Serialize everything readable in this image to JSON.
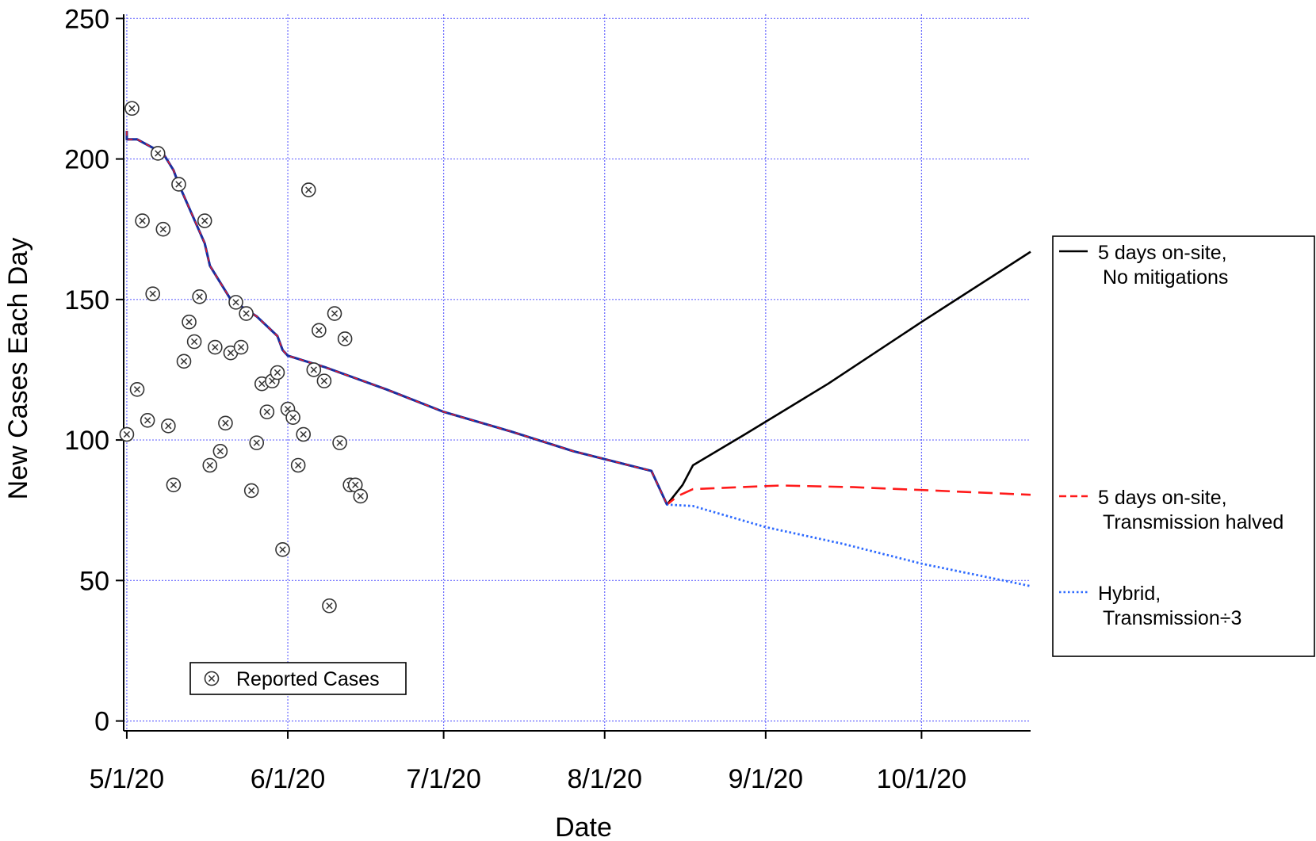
{
  "chart_data": {
    "type": "line",
    "xlabel": "Date",
    "ylabel": "New Cases Each Day",
    "x_ticks": [
      "5/1/20",
      "6/1/20",
      "7/1/20",
      "8/1/20",
      "9/1/20",
      "10/1/20"
    ],
    "xlim": [
      "5/1/20",
      "10/22/20"
    ],
    "ylim": [
      0,
      250
    ],
    "y_ticks": [
      0,
      50,
      100,
      150,
      200,
      250
    ],
    "grid": true,
    "colors": {
      "grid": "#6b6bff",
      "no_mitigation": "#000000",
      "halved": "#ff1a1a",
      "hybrid": "#2f6bff",
      "history": "#1a2fa0"
    },
    "series": [
      {
        "name": "5 days on-site, No mitigations",
        "legend_lines": [
          "5 days on-site,",
          "No mitigations"
        ],
        "style": "solid",
        "x": [
          "5/1/20",
          "5/1/20",
          "5/3/20",
          "5/8/20",
          "5/10/20",
          "5/11/20",
          "5/16/20",
          "5/17/20",
          "5/21/20",
          "5/26/20",
          "5/30/20",
          "5/31/20",
          "6/1/20",
          "6/8/20",
          "6/20/20",
          "7/1/20",
          "7/14/20",
          "7/26/20",
          "8/10/20",
          "8/13/20",
          "8/16/20",
          "8/18/20",
          "8/28/20",
          "9/13/20",
          "10/1/20",
          "10/22/20"
        ],
        "y": [
          210,
          207,
          207,
          202,
          196,
          191,
          170,
          162,
          150,
          144,
          137,
          132,
          130,
          126,
          118,
          110,
          103,
          96,
          89,
          77,
          84,
          91,
          102,
          120,
          142,
          167
        ]
      },
      {
        "name": "5 days on-site, Transmission halved",
        "legend_lines": [
          "5 days on-site,",
          "Transmission halved"
        ],
        "style": "dashed",
        "x": [
          "5/1/20",
          "5/1/20",
          "5/3/20",
          "5/8/20",
          "5/10/20",
          "5/11/20",
          "5/16/20",
          "5/17/20",
          "5/21/20",
          "5/26/20",
          "5/30/20",
          "5/31/20",
          "6/1/20",
          "6/8/20",
          "6/20/20",
          "7/1/20",
          "7/14/20",
          "7/26/20",
          "8/10/20",
          "8/13/20",
          "8/15/20",
          "8/18/20",
          "8/27/20",
          "9/4/20",
          "9/18/20",
          "10/1/20",
          "10/22/20"
        ],
        "y": [
          210,
          207,
          207,
          202,
          196,
          191,
          170,
          162,
          150,
          144,
          137,
          132,
          130,
          126,
          118,
          110,
          103,
          96,
          89,
          77,
          80,
          82.5,
          83.2,
          83.8,
          83.2,
          82.2,
          80.5
        ]
      },
      {
        "name": "Hybrid, Transmission÷3",
        "legend_lines": [
          "Hybrid,",
          "Transmission÷3"
        ],
        "style": "dotted",
        "x": [
          "5/1/20",
          "5/1/20",
          "5/3/20",
          "5/8/20",
          "5/10/20",
          "5/11/20",
          "5/16/20",
          "5/17/20",
          "5/21/20",
          "5/26/20",
          "5/30/20",
          "5/31/20",
          "6/1/20",
          "6/8/20",
          "6/20/20",
          "7/1/20",
          "7/14/20",
          "7/26/20",
          "8/10/20",
          "8/13/20",
          "8/18/20",
          "9/1/20",
          "9/16/20",
          "10/1/20",
          "10/22/20"
        ],
        "y": [
          210,
          207,
          207,
          202,
          196,
          191,
          170,
          162,
          150,
          144,
          137,
          132,
          130,
          126,
          118,
          110,
          103,
          96,
          89,
          77,
          76.5,
          69,
          63,
          56,
          48
        ]
      },
      {
        "name": "Reported Cases",
        "legend_lines": [
          "Reported Cases"
        ],
        "style": "markers",
        "x": [
          "5/1/20",
          "5/2/20",
          "5/3/20",
          "5/4/20",
          "5/5/20",
          "5/6/20",
          "5/7/20",
          "5/8/20",
          "5/9/20",
          "5/10/20",
          "5/11/20",
          "5/12/20",
          "5/13/20",
          "5/14/20",
          "5/15/20",
          "5/16/20",
          "5/17/20",
          "5/18/20",
          "5/19/20",
          "5/20/20",
          "5/21/20",
          "5/22/20",
          "5/23/20",
          "5/24/20",
          "5/25/20",
          "5/26/20",
          "5/27/20",
          "5/28/20",
          "5/29/20",
          "5/30/20",
          "5/31/20",
          "6/1/20",
          "6/2/20",
          "6/3/20",
          "6/4/20",
          "6/5/20",
          "6/6/20",
          "6/7/20",
          "6/8/20",
          "6/9/20",
          "6/10/20",
          "6/11/20",
          "6/12/20",
          "6/13/20",
          "6/14/20",
          "6/15/20"
        ],
        "y": [
          102,
          218,
          118,
          178,
          107,
          152,
          202,
          175,
          105,
          84,
          191,
          128,
          142,
          135,
          151,
          178,
          91,
          133,
          96,
          106,
          131,
          149,
          133,
          145,
          82,
          99,
          120,
          110,
          121,
          124,
          61,
          111,
          108,
          91,
          102,
          189,
          125,
          139,
          121,
          41,
          145,
          99,
          136,
          84,
          84,
          80
        ]
      }
    ]
  }
}
